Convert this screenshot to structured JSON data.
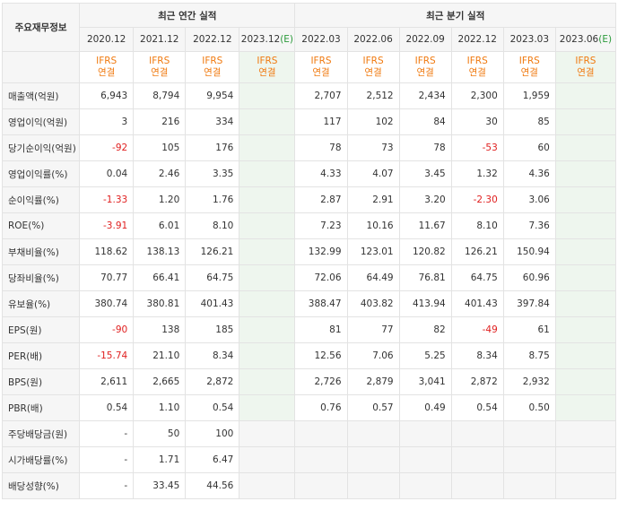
{
  "table": {
    "corner_label": "주요재무정보",
    "annual_group": "최근 연간 실적",
    "quarter_group": "최근 분기 실적",
    "periods": [
      {
        "label": "2020.12",
        "est": false
      },
      {
        "label": "2021.12",
        "est": false
      },
      {
        "label": "2022.12",
        "est": false
      },
      {
        "label": "2023.12",
        "est": true
      },
      {
        "label": "2022.03",
        "est": false
      },
      {
        "label": "2022.06",
        "est": false
      },
      {
        "label": "2022.09",
        "est": false
      },
      {
        "label": "2022.12",
        "est": false
      },
      {
        "label": "2023.03",
        "est": false
      },
      {
        "label": "2023.06",
        "est": true
      }
    ],
    "est_marker": "(E)",
    "ifrs_top": "IFRS",
    "ifrs_bottom": "연결",
    "rows": [
      {
        "label": "매출액(억원)",
        "values": [
          "6,943",
          "8,794",
          "9,954",
          "",
          "2,707",
          "2,512",
          "2,434",
          "2,300",
          "1,959",
          ""
        ]
      },
      {
        "label": "영업이익(억원)",
        "values": [
          "3",
          "216",
          "334",
          "",
          "117",
          "102",
          "84",
          "30",
          "85",
          ""
        ]
      },
      {
        "label": "당기순이익(억원)",
        "values": [
          "-92",
          "105",
          "176",
          "",
          "78",
          "73",
          "78",
          "-53",
          "60",
          ""
        ]
      },
      {
        "label": "영업이익률(%)",
        "values": [
          "0.04",
          "2.46",
          "3.35",
          "",
          "4.33",
          "4.07",
          "3.45",
          "1.32",
          "4.36",
          ""
        ]
      },
      {
        "label": "순이익률(%)",
        "values": [
          "-1.33",
          "1.20",
          "1.76",
          "",
          "2.87",
          "2.91",
          "3.20",
          "-2.30",
          "3.06",
          ""
        ]
      },
      {
        "label": "ROE(%)",
        "values": [
          "-3.91",
          "6.01",
          "8.10",
          "",
          "7.23",
          "10.16",
          "11.67",
          "8.10",
          "7.36",
          ""
        ]
      },
      {
        "label": "부채비율(%)",
        "values": [
          "118.62",
          "138.13",
          "126.21",
          "",
          "132.99",
          "123.01",
          "120.82",
          "126.21",
          "150.94",
          ""
        ]
      },
      {
        "label": "당좌비율(%)",
        "values": [
          "70.77",
          "66.41",
          "64.75",
          "",
          "72.06",
          "64.49",
          "76.81",
          "64.75",
          "60.96",
          ""
        ]
      },
      {
        "label": "유보율(%)",
        "values": [
          "380.74",
          "380.81",
          "401.43",
          "",
          "388.47",
          "403.82",
          "413.94",
          "401.43",
          "397.84",
          ""
        ]
      },
      {
        "label": "EPS(원)",
        "values": [
          "-90",
          "138",
          "185",
          "",
          "81",
          "77",
          "82",
          "-49",
          "61",
          ""
        ]
      },
      {
        "label": "PER(배)",
        "values": [
          "-15.74",
          "21.10",
          "8.34",
          "",
          "12.56",
          "7.06",
          "5.25",
          "8.34",
          "8.75",
          ""
        ]
      },
      {
        "label": "BPS(원)",
        "values": [
          "2,611",
          "2,665",
          "2,872",
          "",
          "2,726",
          "2,879",
          "3,041",
          "2,872",
          "2,932",
          ""
        ]
      },
      {
        "label": "PBR(배)",
        "values": [
          "0.54",
          "1.10",
          "0.54",
          "",
          "0.76",
          "0.57",
          "0.49",
          "0.54",
          "0.50",
          ""
        ]
      },
      {
        "label": "주당배당금(원)",
        "values": [
          "-",
          "50",
          "100",
          "",
          "",
          "",
          "",
          "",
          "",
          ""
        ]
      },
      {
        "label": "시가배당률(%)",
        "values": [
          "-",
          "1.71",
          "6.47",
          "",
          "",
          "",
          "",
          "",
          "",
          ""
        ]
      },
      {
        "label": "배당성향(%)",
        "values": [
          "-",
          "33.45",
          "44.56",
          "",
          "",
          "",
          "",
          "",
          "",
          ""
        ]
      }
    ]
  }
}
